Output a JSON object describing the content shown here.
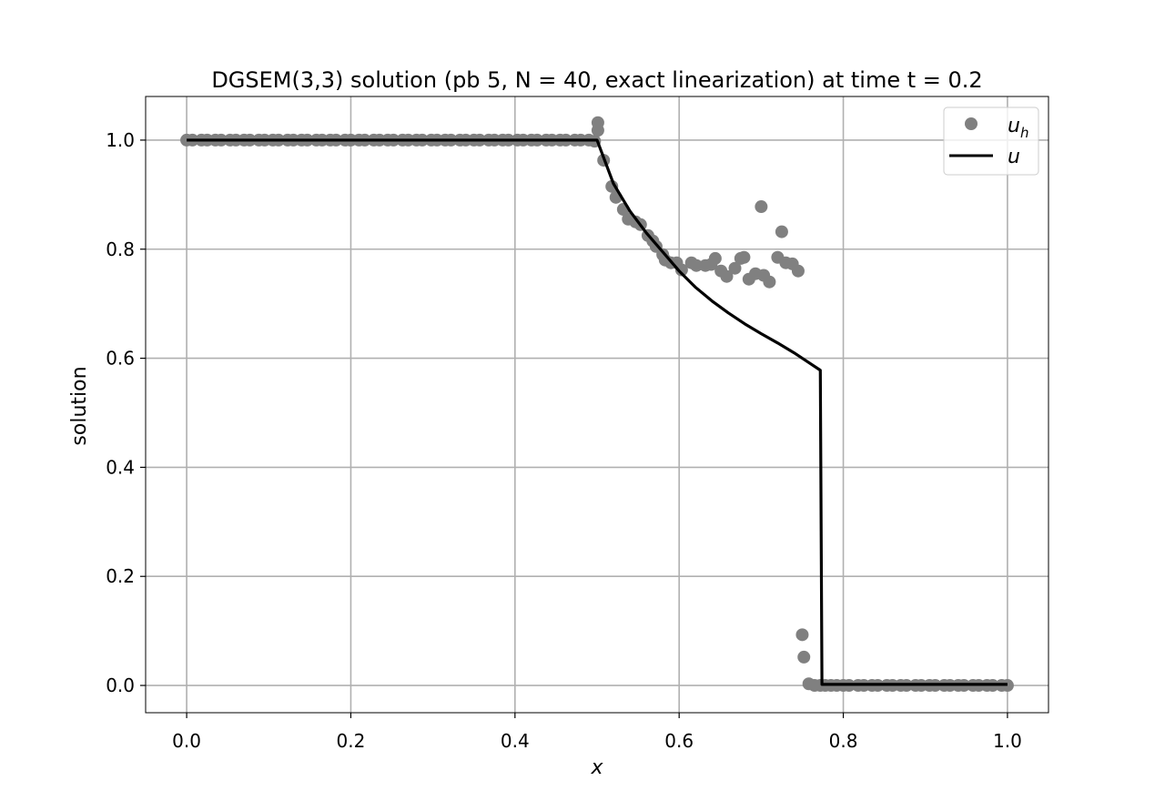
{
  "chart_data": {
    "type": "scatter",
    "title": "DGSEM(3,3) solution (pb 5, N = 40, exact linearization) at time t = 0.2",
    "xlabel": "x",
    "ylabel": "solution",
    "xlim": [
      -0.05,
      1.05
    ],
    "ylim": [
      -0.05,
      1.08
    ],
    "xticks": [
      0.0,
      0.2,
      0.4,
      0.6,
      0.8,
      1.0
    ],
    "xtick_labels": [
      "0.0",
      "0.2",
      "0.4",
      "0.6",
      "0.8",
      "1.0"
    ],
    "yticks": [
      0.0,
      0.2,
      0.4,
      0.6,
      0.8,
      1.0
    ],
    "ytick_labels": [
      "0.0",
      "0.2",
      "0.4",
      "0.6",
      "0.8",
      "1.0"
    ],
    "grid": true,
    "legend_position": "top-right",
    "series": [
      {
        "name": "u_h",
        "kind": "markers",
        "color": "#808080",
        "x": [
          0.0,
          0.007,
          0.018,
          0.025,
          0.035,
          0.042,
          0.053,
          0.06,
          0.07,
          0.077,
          0.088,
          0.095,
          0.105,
          0.112,
          0.123,
          0.13,
          0.14,
          0.147,
          0.158,
          0.165,
          0.175,
          0.182,
          0.193,
          0.2,
          0.21,
          0.217,
          0.228,
          0.235,
          0.245,
          0.252,
          0.263,
          0.27,
          0.28,
          0.287,
          0.298,
          0.305,
          0.315,
          0.322,
          0.333,
          0.34,
          0.35,
          0.357,
          0.368,
          0.375,
          0.385,
          0.392,
          0.403,
          0.41,
          0.42,
          0.427,
          0.438,
          0.445,
          0.455,
          0.462,
          0.473,
          0.48,
          0.49,
          0.497,
          0.501,
          0.501,
          0.508,
          0.518,
          0.523,
          0.532,
          0.538,
          0.547,
          0.553,
          0.562,
          0.568,
          0.572,
          0.58,
          0.583,
          0.59,
          0.597,
          0.603,
          0.615,
          0.621,
          0.632,
          0.639,
          0.644,
          0.651,
          0.658,
          0.668,
          0.675,
          0.679,
          0.685,
          0.693,
          0.7,
          0.703,
          0.71,
          0.72,
          0.725,
          0.73,
          0.738,
          0.745,
          0.75,
          0.752,
          0.758,
          0.765,
          0.772,
          0.778,
          0.785,
          0.792,
          0.8,
          0.807,
          0.818,
          0.825,
          0.835,
          0.842,
          0.853,
          0.86,
          0.87,
          0.877,
          0.888,
          0.895,
          0.905,
          0.912,
          0.923,
          0.93,
          0.94,
          0.947,
          0.958,
          0.965,
          0.975,
          0.982,
          0.993,
          1.0
        ],
        "y": [
          1.0,
          1.0,
          1.0,
          1.0,
          1.0,
          1.0,
          1.0,
          1.0,
          1.0,
          1.0,
          1.0,
          1.0,
          1.0,
          1.0,
          1.0,
          1.0,
          1.0,
          1.0,
          1.0,
          1.0,
          1.0,
          1.0,
          1.0,
          1.0,
          1.0,
          1.0,
          1.0,
          1.0,
          1.0,
          1.0,
          1.0,
          1.0,
          1.0,
          1.0,
          1.0,
          1.0,
          1.0,
          1.0,
          1.0,
          1.0,
          1.0,
          1.0,
          1.0,
          1.0,
          1.0,
          1.0,
          1.0,
          1.0,
          1.0,
          1.0,
          1.0,
          1.0,
          1.0,
          1.0,
          1.0,
          1.0,
          1.0,
          0.998,
          1.032,
          1.018,
          0.963,
          0.915,
          0.895,
          0.873,
          0.855,
          0.85,
          0.845,
          0.825,
          0.815,
          0.805,
          0.79,
          0.78,
          0.775,
          0.775,
          0.762,
          0.775,
          0.77,
          0.77,
          0.772,
          0.783,
          0.76,
          0.75,
          0.765,
          0.783,
          0.785,
          0.745,
          0.755,
          0.878,
          0.752,
          0.74,
          0.785,
          0.832,
          0.775,
          0.773,
          0.76,
          0.093,
          0.052,
          0.003,
          0.0,
          0.0,
          0.0,
          0.0,
          0.0,
          0.0,
          0.0,
          0.0,
          0.0,
          0.0,
          0.0,
          0.0,
          0.0,
          0.0,
          0.0,
          0.0,
          0.0,
          0.0,
          0.0,
          0.0,
          0.0,
          0.0,
          0.0,
          0.0,
          0.0,
          0.0,
          0.0,
          0.0,
          0.0
        ]
      },
      {
        "name": "u",
        "kind": "line",
        "color": "#000000",
        "x": [
          0.0,
          0.5,
          0.52,
          0.54,
          0.56,
          0.58,
          0.6,
          0.62,
          0.64,
          0.66,
          0.68,
          0.7,
          0.72,
          0.74,
          0.76,
          0.772,
          0.774,
          1.0
        ],
        "y": [
          1.0,
          1.0,
          0.92,
          0.87,
          0.83,
          0.795,
          0.76,
          0.73,
          0.705,
          0.683,
          0.663,
          0.645,
          0.628,
          0.61,
          0.59,
          0.578,
          0.002,
          0.002
        ]
      }
    ]
  }
}
